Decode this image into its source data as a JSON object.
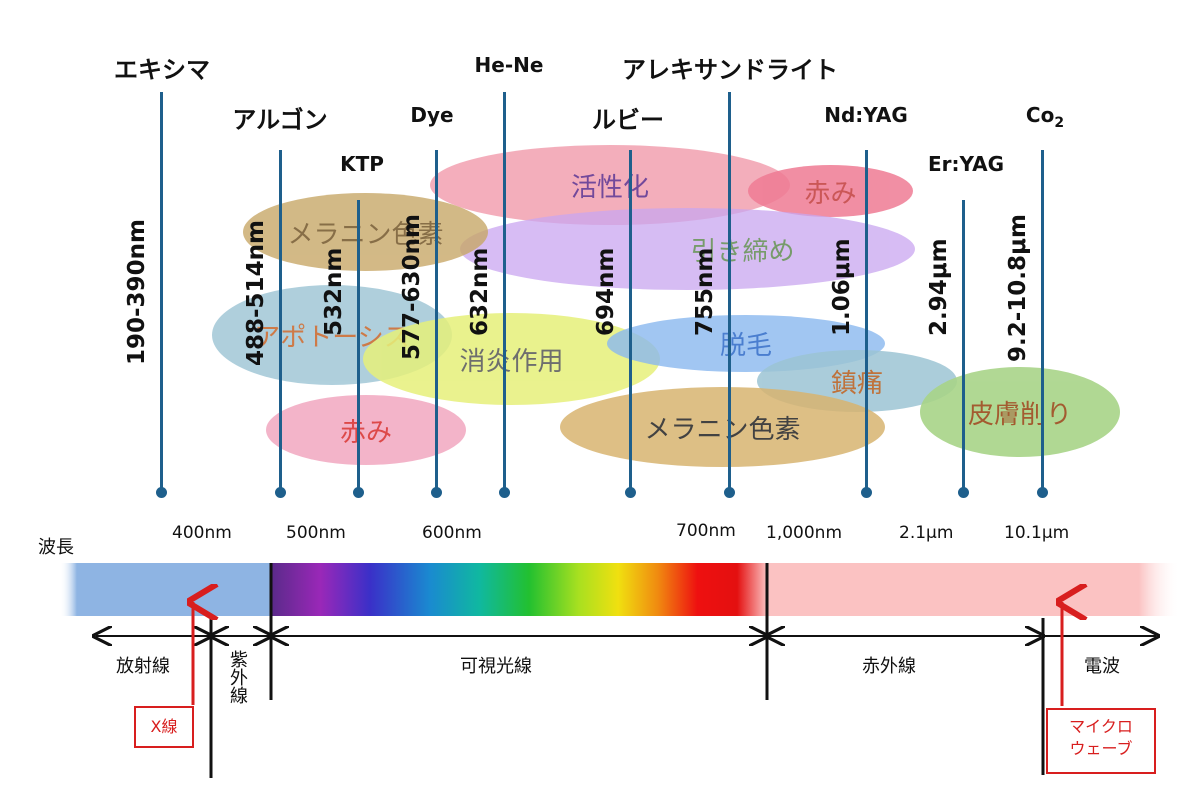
{
  "lasers": [
    {
      "id": "excimer",
      "name": "エキシマ",
      "wavelength": "190-390nm",
      "color": "#1e5f8c"
    },
    {
      "id": "argon",
      "name": "アルゴン",
      "wavelength": "488-514nm",
      "color": "#1e5f8c"
    },
    {
      "id": "ktp",
      "name": "KTP",
      "wavelength": "532nm",
      "color": "#1e5f8c"
    },
    {
      "id": "dye",
      "name": "Dye",
      "wavelength": "577-630nm",
      "color": "#1e5f8c"
    },
    {
      "id": "he-ne",
      "name": "He-Ne",
      "wavelength": "632nm",
      "color": "#1e5f8c"
    },
    {
      "id": "ruby",
      "name": "ルビー",
      "wavelength": "694nm",
      "color": "#1e5f8c"
    },
    {
      "id": "alexandrite",
      "name": "アレキサンドライト",
      "wavelength": "755nm",
      "color": "#1e5f8c"
    },
    {
      "id": "nd-yag",
      "name": "Nd:YAG",
      "wavelength": "1.06μm",
      "color": "#1e5f8c"
    },
    {
      "id": "er-yag",
      "name": "Er:YAG",
      "wavelength": "2.94μm",
      "color": "#1e5f8c"
    },
    {
      "id": "co2",
      "name": "Co",
      "name_sub": "2",
      "wavelength": "9.2-10.8μm",
      "color": "#1e5f8c"
    }
  ],
  "effects": [
    {
      "id": "activation",
      "label": "活性化",
      "fill": "#f2a0b0",
      "text_color": "#5a2a8a"
    },
    {
      "id": "redness-top",
      "label": "赤み",
      "fill": "#ef7b94",
      "text_color": "#c23a3a"
    },
    {
      "id": "melanin-top",
      "label": "メラニン色素",
      "fill": "#c8a868",
      "text_color": "#6a4a1a"
    },
    {
      "id": "tightening",
      "label": "引き締め",
      "fill": "#c9a6f0",
      "text_color": "#4a7a3a"
    },
    {
      "id": "apoptosis",
      "label": "アポトーシス",
      "fill": "#9cc4d4",
      "text_color": "#c25a1a"
    },
    {
      "id": "anti-inflammatory",
      "label": "消炎作用",
      "fill": "#e6f07a",
      "text_color": "#555555"
    },
    {
      "id": "hair-removal",
      "label": "脱毛",
      "fill": "#8ab8f0",
      "text_color": "#1e5fc4"
    },
    {
      "id": "pain-relief",
      "label": "鎮痛",
      "fill": "#9cc4d4",
      "text_color": "#b45a1a"
    },
    {
      "id": "redness-bottom",
      "label": "赤み",
      "fill": "#f2a8c0",
      "text_color": "#d82a2a"
    },
    {
      "id": "melanin-bottom",
      "label": "メラニン色素",
      "fill": "#d8b470",
      "text_color": "#222222"
    },
    {
      "id": "skin-resurfacing",
      "label": "皮膚削り",
      "fill": "#a8d488",
      "text_color": "#9a4a1a"
    }
  ],
  "scale": {
    "title": "波長",
    "ticks": [
      "400nm",
      "500nm",
      "600nm",
      "700nm",
      "1,000nm",
      "2.1μm",
      "10.1μm"
    ]
  },
  "regions": {
    "radiation": "放射線",
    "ultraviolet": "紫外線",
    "visible": "可視光線",
    "infrared": "赤外線",
    "radio": "電波"
  },
  "callouts": {
    "xray": "X線",
    "microwave_line1": "マイクロ",
    "microwave_line2": "ウェーブ"
  },
  "colors": {
    "line": "#1e5f8c",
    "band_radiation": "#8eb4e3",
    "band_infrared": "#fbc2c2",
    "arrow_red": "#d81e1e"
  }
}
